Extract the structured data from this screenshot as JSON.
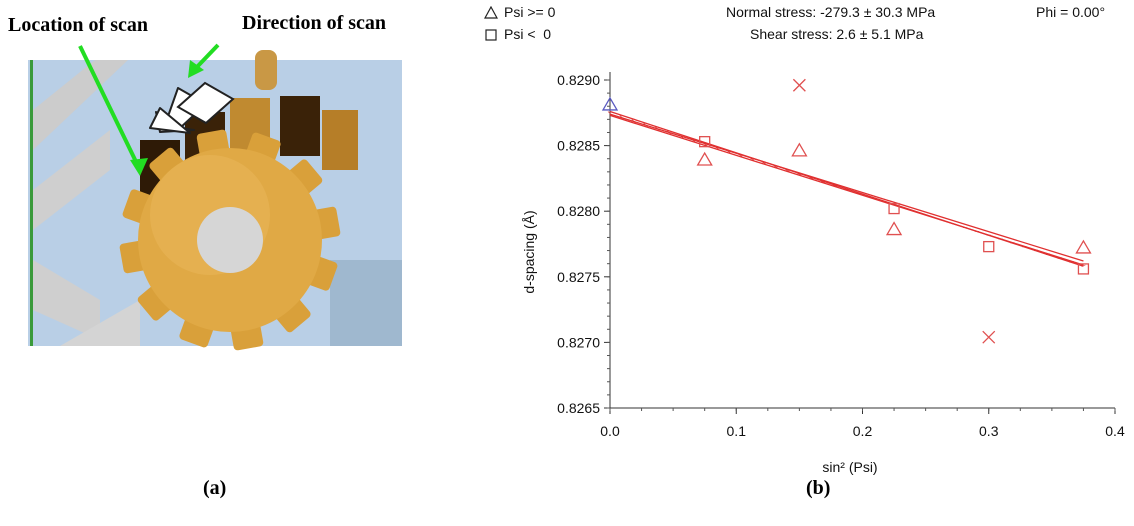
{
  "panel_a": {
    "label_location": "Location of scan",
    "label_direction": "Direction of scan",
    "caption": "(a)",
    "colors": {
      "gear": "#d9a03a",
      "gear_dark": "#8a5a1a",
      "arrow_green": "#22dd22",
      "background": "#a9c4e0"
    }
  },
  "panel_b": {
    "caption": "(b)",
    "legend": [
      {
        "symbol": "triangle-icon",
        "label": "Psi >= 0"
      },
      {
        "symbol": "square-icon",
        "label": "Psi <  0"
      }
    ],
    "normal_stress": "Normal stress: -279.3 ± 30.3 MPa",
    "shear_stress": "Shear stress: 2.6 ± 5.1 MPa",
    "phi": "Phi = 0.00°"
  },
  "chart_data": {
    "type": "scatter",
    "xlabel": "sin² (Psi)",
    "ylabel": "d-spacing (Å)",
    "xlim": [
      0.0,
      0.4
    ],
    "ylim": [
      0.8265,
      0.829
    ],
    "x_ticks": [
      "0.0",
      "0.1",
      "0.2",
      "0.3",
      "0.4"
    ],
    "y_ticks": [
      "0.8265",
      "0.8270",
      "0.8275",
      "0.8280",
      "0.8285",
      "0.8290"
    ],
    "grid": false,
    "series": [
      {
        "name": "Psi >= 0",
        "marker": "triangle",
        "color": "#e05050",
        "points": [
          [
            0.075,
            0.82839
          ],
          [
            0.15,
            0.82846
          ],
          [
            0.225,
            0.82786
          ],
          [
            0.375,
            0.82772
          ]
        ]
      },
      {
        "name": "Psi <  0",
        "marker": "square",
        "color": "#e05050",
        "points": [
          [
            0.075,
            0.82853
          ],
          [
            0.225,
            0.82802
          ],
          [
            0.3,
            0.82773
          ],
          [
            0.375,
            0.82756
          ]
        ]
      },
      {
        "marker": "triangle",
        "color": "#5a5ac0",
        "points": [
          [
            0.0,
            0.82881
          ]
        ]
      },
      {
        "marker": "cross",
        "color": "#e05050",
        "points": [
          [
            0.15,
            0.82896
          ],
          [
            0.3,
            0.82704
          ]
        ]
      }
    ],
    "fit_lines": [
      {
        "color": "#e03030",
        "points": [
          [
            0.0,
            0.82876
          ],
          [
            0.375,
            0.82758
          ]
        ]
      },
      {
        "color": "#e03030",
        "points": [
          [
            0.0,
            0.82873
          ],
          [
            0.375,
            0.82759
          ]
        ]
      },
      {
        "color": "#e03030",
        "points": [
          [
            0.0,
            0.82874
          ],
          [
            0.375,
            0.82762
          ]
        ]
      }
    ]
  }
}
